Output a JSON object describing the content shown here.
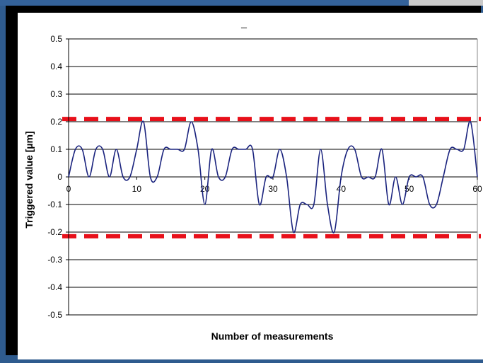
{
  "chart_data": {
    "type": "line",
    "title": "",
    "title_mark": "_",
    "xlabel": "Number of measurements",
    "ylabel": "Triggered value [µm]",
    "xlim": [
      0,
      60
    ],
    "ylim": [
      -0.5,
      0.5
    ],
    "x_ticks": [
      "0",
      "10",
      "20",
      "30",
      "40",
      "50",
      "60"
    ],
    "y_ticks": [
      "0.5",
      "0.4",
      "0.3",
      "0.2",
      "0.1",
      "0",
      "-0.1",
      "-0.2",
      "-0.3",
      "-0.4",
      "-0.5"
    ],
    "grid": "horizontal",
    "legend": "none",
    "series": [
      {
        "color": "#1a237e",
        "x": [
          0,
          1,
          2,
          3,
          4,
          5,
          6,
          7,
          8,
          9,
          10,
          11,
          12,
          13,
          14,
          15,
          16,
          17,
          18,
          19,
          20,
          21,
          22,
          23,
          24,
          25,
          26,
          27,
          28,
          29,
          30,
          31,
          32,
          33,
          34,
          35,
          36,
          37,
          38,
          39,
          40,
          41,
          42,
          43,
          44,
          45,
          46,
          47,
          48,
          49,
          50,
          51,
          52,
          53,
          54,
          55,
          56,
          57,
          58,
          59,
          60
        ],
        "values": [
          0,
          0.1,
          0.1,
          0,
          0.1,
          0.1,
          0,
          0.1,
          0,
          0,
          0.1,
          0.2,
          0,
          0,
          0.1,
          0.1,
          0.1,
          0.1,
          0.2,
          0.1,
          -0.1,
          0.1,
          0,
          0,
          0.1,
          0.1,
          0.1,
          0.1,
          -0.1,
          0,
          0,
          0.1,
          0,
          -0.2,
          -0.1,
          -0.1,
          -0.1,
          0.1,
          -0.1,
          -0.2,
          0,
          0.1,
          0.1,
          0,
          0,
          0,
          0.1,
          -0.1,
          0,
          -0.1,
          0,
          0,
          0,
          -0.1,
          -0.1,
          0,
          0.1,
          0.1,
          0.1,
          0.2,
          0
        ]
      }
    ],
    "threshold_lines": [
      {
        "value": 0.21,
        "color": "#e8101a",
        "style": "dashed"
      },
      {
        "value": -0.215,
        "color": "#e8101a",
        "style": "dashed"
      }
    ]
  }
}
